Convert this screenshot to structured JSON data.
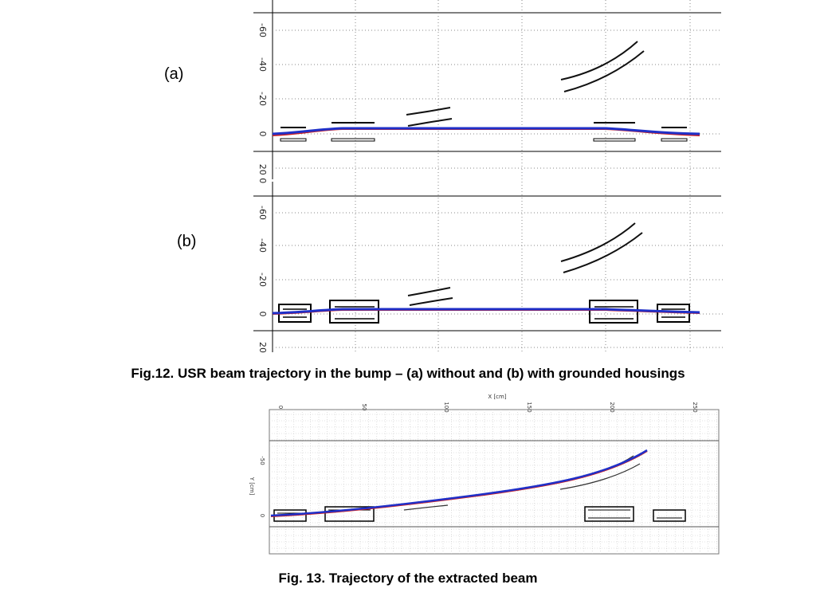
{
  "fig12": {
    "panel_a_label": "(a)",
    "panel_b_label": "(b)",
    "y_ticks": [
      "-60",
      "-40",
      "-20",
      "0",
      "20"
    ],
    "y_ticks_a_bottom": "20 0",
    "caption": "Fig.12. USR beam trajectory in the bump – (a) without and (b) with grounded housings"
  },
  "fig13": {
    "x_axis_label": "X [cm]",
    "y_axis_label": "Y [cm]",
    "x_ticks": [
      "0",
      "50",
      "100",
      "150",
      "200",
      "250"
    ],
    "y_ticks": [
      "-50",
      "0"
    ],
    "caption": "Fig. 13.  Trajectory of the extracted beam"
  },
  "colors": {
    "beam_blue": "#2030c8",
    "beam_red": "#d02020",
    "beam_magenta": "#b040b0",
    "frame": "#000000",
    "grid": "#9a9a9a"
  }
}
